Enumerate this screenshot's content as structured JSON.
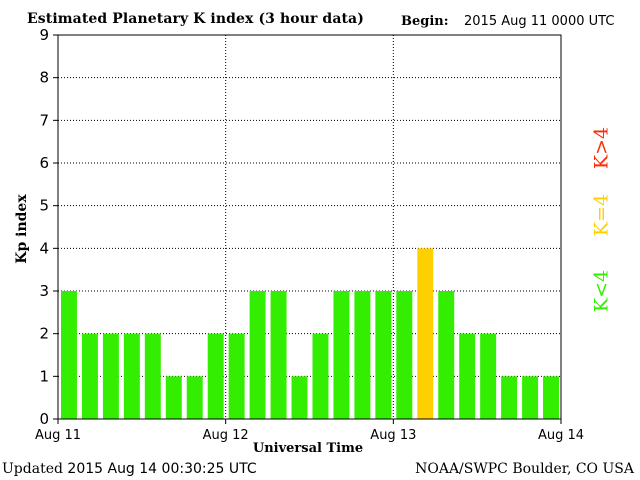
{
  "header": {
    "title": "Estimated Planetary K index (3 hour data)",
    "begin_label": "Begin:",
    "begin_value": "2015 Aug 11 0000 UTC"
  },
  "footer": {
    "updated_label": "Updated",
    "updated_value": "2015 Aug 14 00:30:25 UTC",
    "credit": "NOAA/SWPC Boulder, CO USA"
  },
  "legend": {
    "high": {
      "label": "K>4",
      "color": "#ff2a00"
    },
    "equal": {
      "label": "K=4",
      "color": "#ffd000"
    },
    "low": {
      "label": "K<4",
      "color": "#33ee00"
    }
  },
  "chart_data": {
    "type": "bar",
    "title": "Estimated Planetary K index (3 hour data)",
    "xlabel": "Universal Time",
    "ylabel": "Kp index",
    "ylim": [
      0,
      9
    ],
    "yticks": [
      "0",
      "1",
      "2",
      "3",
      "4",
      "5",
      "6",
      "7",
      "8",
      "9"
    ],
    "xticks": [
      "Aug 11",
      "Aug 12",
      "Aug 13",
      "Aug 14"
    ],
    "grid": true,
    "values": [
      3,
      2,
      2,
      2,
      2,
      1,
      1,
      2,
      2,
      3,
      3,
      1,
      2,
      3,
      3,
      3,
      3,
      4,
      3,
      2,
      2,
      1,
      1,
      1
    ],
    "colors": {
      "below_4": "#33ee00",
      "equal_4": "#ffd000",
      "above_4": "#ff2a00"
    }
  }
}
